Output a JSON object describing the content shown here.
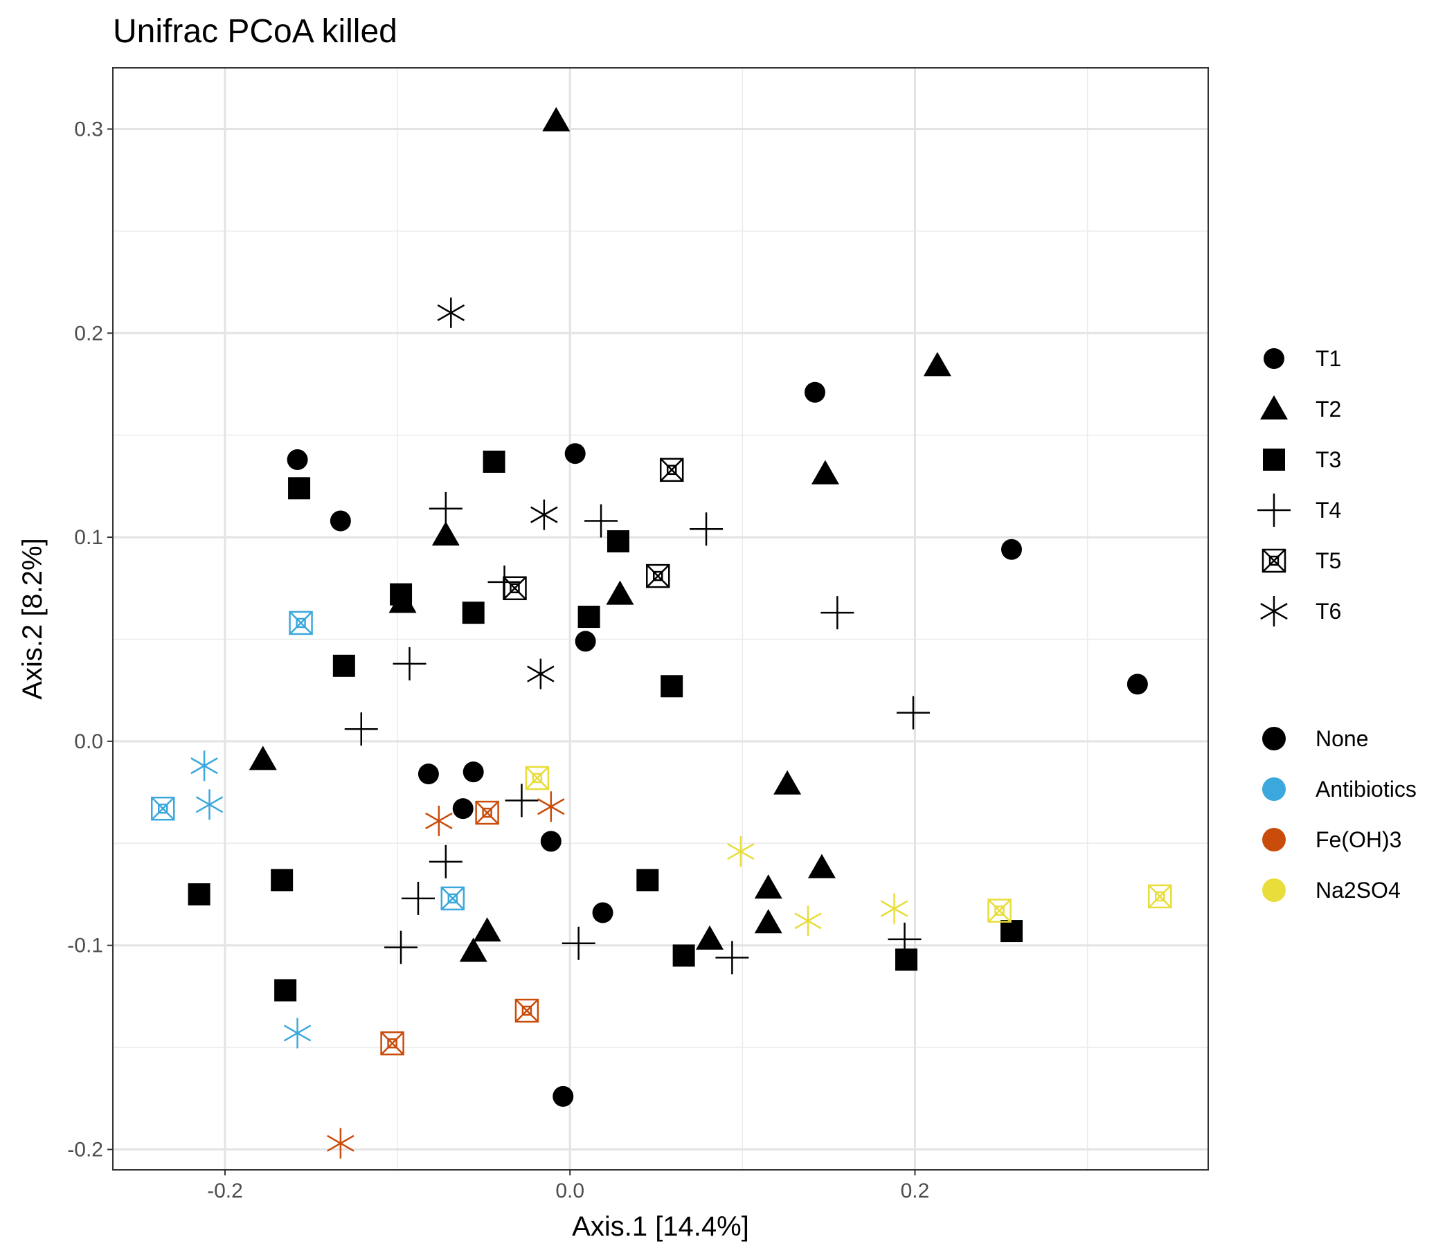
{
  "chart_data": {
    "type": "scatter",
    "title": "Unifrac PCoA killed",
    "xlabel": "Axis.1   [14.4%]",
    "ylabel": "Axis.2   [8.2%]",
    "xlim": [
      -0.265,
      0.37
    ],
    "ylim": [
      -0.21,
      0.33
    ],
    "xticks": [
      -0.2,
      0.0,
      0.2
    ],
    "xtick_labels": [
      "-0.2",
      "0.0",
      "0.2"
    ],
    "yticks": [
      -0.2,
      -0.1,
      0.0,
      0.1,
      0.2,
      0.3
    ],
    "ytick_labels": [
      "-0.2",
      "-0.1",
      "0.0",
      "0.1",
      "0.2",
      "0.3"
    ],
    "grid": true,
    "legend_position": "right",
    "shape_legend": [
      {
        "label": "T1",
        "shape": "circle"
      },
      {
        "label": "T2",
        "shape": "triangle"
      },
      {
        "label": "T3",
        "shape": "square"
      },
      {
        "label": "T4",
        "shape": "plus"
      },
      {
        "label": "T5",
        "shape": "boxx"
      },
      {
        "label": "T6",
        "shape": "asterisk"
      }
    ],
    "color_legend": [
      {
        "label": "None",
        "color": "#000000"
      },
      {
        "label": "Antibiotics",
        "color": "#3BA8DD"
      },
      {
        "label": "Fe(OH)3",
        "color": "#C94C0A"
      },
      {
        "label": "Na2SO4",
        "color": "#E8DD3A"
      }
    ],
    "points": [
      {
        "x": -0.158,
        "y": 0.138,
        "shape": "circle",
        "color": "None"
      },
      {
        "x": -0.133,
        "y": 0.108,
        "shape": "circle",
        "color": "None"
      },
      {
        "x": 0.003,
        "y": 0.141,
        "shape": "circle",
        "color": "None"
      },
      {
        "x": 0.142,
        "y": 0.171,
        "shape": "circle",
        "color": "None"
      },
      {
        "x": 0.256,
        "y": 0.094,
        "shape": "circle",
        "color": "None"
      },
      {
        "x": 0.329,
        "y": 0.028,
        "shape": "circle",
        "color": "None"
      },
      {
        "x": 0.009,
        "y": 0.049,
        "shape": "circle",
        "color": "None"
      },
      {
        "x": -0.082,
        "y": -0.016,
        "shape": "circle",
        "color": "None"
      },
      {
        "x": -0.056,
        "y": -0.015,
        "shape": "circle",
        "color": "None"
      },
      {
        "x": -0.062,
        "y": -0.033,
        "shape": "circle",
        "color": "None"
      },
      {
        "x": -0.011,
        "y": -0.049,
        "shape": "circle",
        "color": "None"
      },
      {
        "x": 0.019,
        "y": -0.084,
        "shape": "circle",
        "color": "None"
      },
      {
        "x": -0.004,
        "y": -0.174,
        "shape": "circle",
        "color": "None"
      },
      {
        "x": -0.008,
        "y": 0.304,
        "shape": "triangle",
        "color": "None"
      },
      {
        "x": 0.213,
        "y": 0.184,
        "shape": "triangle",
        "color": "None"
      },
      {
        "x": 0.148,
        "y": 0.131,
        "shape": "triangle",
        "color": "None"
      },
      {
        "x": -0.072,
        "y": 0.101,
        "shape": "triangle",
        "color": "None"
      },
      {
        "x": -0.097,
        "y": 0.068,
        "shape": "triangle",
        "color": "None"
      },
      {
        "x": 0.029,
        "y": 0.072,
        "shape": "triangle",
        "color": "None"
      },
      {
        "x": -0.178,
        "y": -0.009,
        "shape": "triangle",
        "color": "None"
      },
      {
        "x": 0.126,
        "y": -0.021,
        "shape": "triangle",
        "color": "None"
      },
      {
        "x": 0.146,
        "y": -0.062,
        "shape": "triangle",
        "color": "None"
      },
      {
        "x": 0.115,
        "y": -0.072,
        "shape": "triangle",
        "color": "None"
      },
      {
        "x": 0.115,
        "y": -0.089,
        "shape": "triangle",
        "color": "None"
      },
      {
        "x": 0.081,
        "y": -0.097,
        "shape": "triangle",
        "color": "None"
      },
      {
        "x": -0.048,
        "y": -0.093,
        "shape": "triangle",
        "color": "None"
      },
      {
        "x": -0.056,
        "y": -0.103,
        "shape": "triangle",
        "color": "None"
      },
      {
        "x": -0.157,
        "y": 0.124,
        "shape": "square",
        "color": "None"
      },
      {
        "x": -0.044,
        "y": 0.137,
        "shape": "square",
        "color": "None"
      },
      {
        "x": 0.028,
        "y": 0.098,
        "shape": "square",
        "color": "None"
      },
      {
        "x": -0.098,
        "y": 0.072,
        "shape": "square",
        "color": "None"
      },
      {
        "x": -0.056,
        "y": 0.063,
        "shape": "square",
        "color": "None"
      },
      {
        "x": 0.011,
        "y": 0.061,
        "shape": "square",
        "color": "None"
      },
      {
        "x": -0.131,
        "y": 0.037,
        "shape": "square",
        "color": "None"
      },
      {
        "x": 0.059,
        "y": 0.027,
        "shape": "square",
        "color": "None"
      },
      {
        "x": -0.215,
        "y": -0.075,
        "shape": "square",
        "color": "None"
      },
      {
        "x": -0.167,
        "y": -0.068,
        "shape": "square",
        "color": "None"
      },
      {
        "x": 0.045,
        "y": -0.068,
        "shape": "square",
        "color": "None"
      },
      {
        "x": 0.066,
        "y": -0.105,
        "shape": "square",
        "color": "None"
      },
      {
        "x": -0.165,
        "y": -0.122,
        "shape": "square",
        "color": "None"
      },
      {
        "x": 0.195,
        "y": -0.107,
        "shape": "square",
        "color": "None"
      },
      {
        "x": 0.256,
        "y": -0.093,
        "shape": "square",
        "color": "None"
      },
      {
        "x": -0.072,
        "y": 0.114,
        "shape": "plus",
        "color": "None"
      },
      {
        "x": 0.018,
        "y": 0.108,
        "shape": "plus",
        "color": "None"
      },
      {
        "x": 0.079,
        "y": 0.104,
        "shape": "plus",
        "color": "None"
      },
      {
        "x": -0.038,
        "y": 0.078,
        "shape": "plus",
        "color": "None"
      },
      {
        "x": 0.155,
        "y": 0.063,
        "shape": "plus",
        "color": "None"
      },
      {
        "x": -0.093,
        "y": 0.038,
        "shape": "plus",
        "color": "None"
      },
      {
        "x": -0.121,
        "y": 0.006,
        "shape": "plus",
        "color": "None"
      },
      {
        "x": 0.199,
        "y": 0.014,
        "shape": "plus",
        "color": "None"
      },
      {
        "x": -0.028,
        "y": -0.029,
        "shape": "plus",
        "color": "None"
      },
      {
        "x": -0.072,
        "y": -0.059,
        "shape": "plus",
        "color": "None"
      },
      {
        "x": -0.088,
        "y": -0.077,
        "shape": "plus",
        "color": "None"
      },
      {
        "x": -0.098,
        "y": -0.101,
        "shape": "plus",
        "color": "None"
      },
      {
        "x": 0.005,
        "y": -0.099,
        "shape": "plus",
        "color": "None"
      },
      {
        "x": 0.094,
        "y": -0.106,
        "shape": "plus",
        "color": "None"
      },
      {
        "x": 0.194,
        "y": -0.097,
        "shape": "plus",
        "color": "None"
      },
      {
        "x": 0.059,
        "y": 0.133,
        "shape": "boxx",
        "color": "None"
      },
      {
        "x": 0.051,
        "y": 0.081,
        "shape": "boxx",
        "color": "None"
      },
      {
        "x": -0.032,
        "y": 0.075,
        "shape": "boxx",
        "color": "None"
      },
      {
        "x": -0.156,
        "y": 0.058,
        "shape": "boxx",
        "color": "Antibiotics"
      },
      {
        "x": -0.236,
        "y": -0.033,
        "shape": "boxx",
        "color": "Antibiotics"
      },
      {
        "x": -0.068,
        "y": -0.077,
        "shape": "boxx",
        "color": "Antibiotics"
      },
      {
        "x": -0.048,
        "y": -0.035,
        "shape": "boxx",
        "color": "Fe(OH)3"
      },
      {
        "x": -0.025,
        "y": -0.132,
        "shape": "boxx",
        "color": "Fe(OH)3"
      },
      {
        "x": -0.103,
        "y": -0.148,
        "shape": "boxx",
        "color": "Fe(OH)3"
      },
      {
        "x": -0.019,
        "y": -0.018,
        "shape": "boxx",
        "color": "Na2SO4"
      },
      {
        "x": 0.249,
        "y": -0.083,
        "shape": "boxx",
        "color": "Na2SO4"
      },
      {
        "x": 0.342,
        "y": -0.076,
        "shape": "boxx",
        "color": "Na2SO4"
      },
      {
        "x": -0.069,
        "y": 0.21,
        "shape": "asterisk",
        "color": "None"
      },
      {
        "x": -0.015,
        "y": 0.111,
        "shape": "asterisk",
        "color": "None"
      },
      {
        "x": -0.017,
        "y": 0.033,
        "shape": "asterisk",
        "color": "None"
      },
      {
        "x": -0.212,
        "y": -0.012,
        "shape": "asterisk",
        "color": "Antibiotics"
      },
      {
        "x": -0.209,
        "y": -0.031,
        "shape": "asterisk",
        "color": "Antibiotics"
      },
      {
        "x": -0.158,
        "y": -0.143,
        "shape": "asterisk",
        "color": "Antibiotics"
      },
      {
        "x": -0.076,
        "y": -0.039,
        "shape": "asterisk",
        "color": "Fe(OH)3"
      },
      {
        "x": -0.011,
        "y": -0.032,
        "shape": "asterisk",
        "color": "Fe(OH)3"
      },
      {
        "x": -0.133,
        "y": -0.197,
        "shape": "asterisk",
        "color": "Fe(OH)3"
      },
      {
        "x": 0.099,
        "y": -0.054,
        "shape": "asterisk",
        "color": "Na2SO4"
      },
      {
        "x": 0.138,
        "y": -0.088,
        "shape": "asterisk",
        "color": "Na2SO4"
      },
      {
        "x": 0.188,
        "y": -0.082,
        "shape": "asterisk",
        "color": "Na2SO4"
      }
    ]
  }
}
